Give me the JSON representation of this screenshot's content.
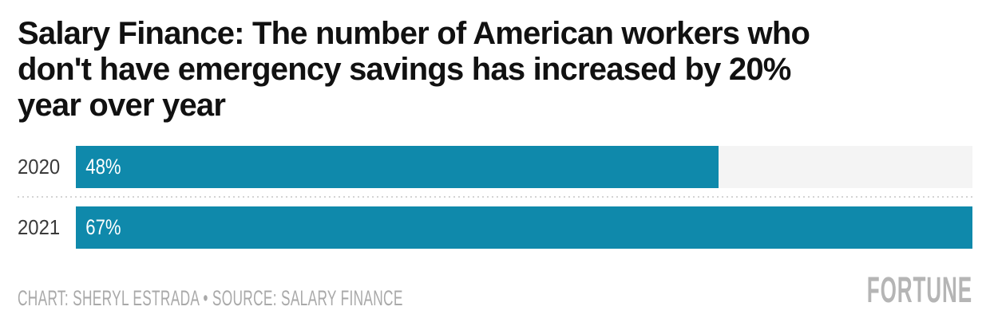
{
  "title": "Salary Finance: The number of American workers who don't have emergency savings has increased by 20% year over year",
  "title_lines": [
    "Salary Finance: The number of American workers who",
    "don't have emergency savings has increased by 20%",
    "year over year"
  ],
  "chart_data": {
    "type": "bar",
    "orientation": "horizontal",
    "title": "Salary Finance: The number of American workers who don't have emergency savings has increased by 20% year over year",
    "categories": [
      "2020",
      "2021"
    ],
    "values": [
      48,
      67
    ],
    "value_labels": [
      "48%",
      "67%"
    ],
    "unit": "%",
    "xlim": [
      0,
      67
    ],
    "grid": false,
    "legend": false,
    "bar_color": "#0f89ab",
    "track_color": "#f4f4f4"
  },
  "footer": {
    "credit": "CHART: SHERYL ESTRADA • SOURCE: SALARY FINANCE",
    "brand": "FORTUNE"
  },
  "colors": {
    "background": "#ffffff",
    "title_text": "#111111",
    "category_label": "#3a3a3a",
    "value_label": "#ffffff",
    "bar": "#0f89ab",
    "track": "#f4f4f4",
    "separator": "#d4d4d4",
    "credit_text": "#a9a9a9",
    "brand_text": "#b5b5b5"
  }
}
